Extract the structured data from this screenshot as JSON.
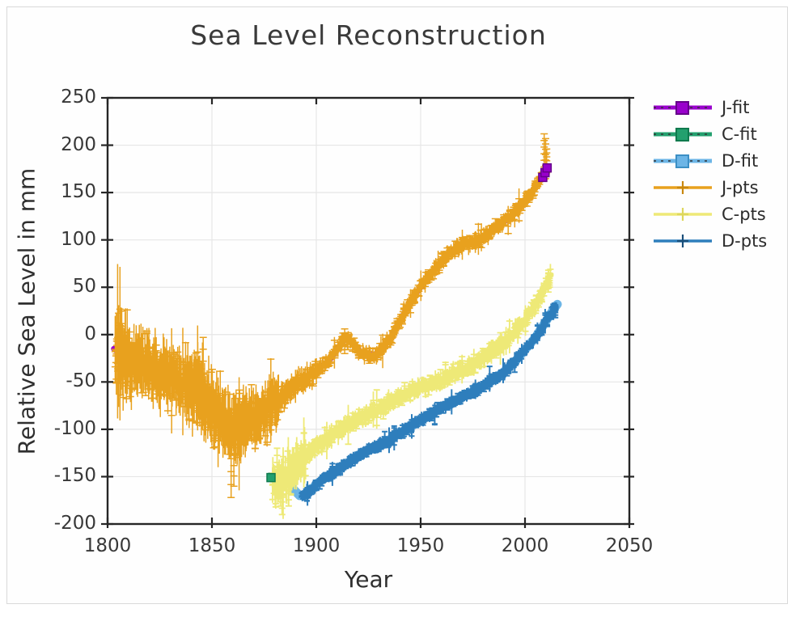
{
  "chart_data": {
    "type": "line+scatter",
    "title": "Sea Level Reconstruction",
    "xlabel": "Year",
    "ylabel": "Relative Sea Level in mm",
    "xlim": [
      1800,
      2050
    ],
    "ylim": [
      -200,
      250
    ],
    "xticks": [
      1800,
      1850,
      1900,
      1950,
      2000,
      2050
    ],
    "yticks": [
      250,
      200,
      150,
      100,
      50,
      0,
      -50,
      -100,
      -150,
      -200
    ],
    "grid": true,
    "grid_color": "#e6e6e6",
    "frame_color": "#262626",
    "legend_position": "right-outside",
    "series": [
      {
        "name": "J-fit",
        "kind": "fit",
        "color": "#9900cc",
        "edge": "#66008a",
        "width": 7,
        "marker": "square",
        "points": [
          [
            1803,
            -15
          ],
          [
            1807,
            -22
          ],
          [
            1811,
            -28
          ],
          [
            1815,
            -30
          ],
          [
            1819,
            -33
          ],
          [
            1823,
            -37
          ],
          [
            1827,
            -42
          ],
          [
            1831,
            -45
          ],
          [
            1835,
            -48
          ],
          [
            1839,
            -52
          ],
          [
            1843,
            -57
          ],
          [
            1847,
            -68
          ],
          [
            1851,
            -78
          ],
          [
            1855,
            -90
          ],
          [
            1859,
            -96
          ],
          [
            1863,
            -98
          ],
          [
            1867,
            -94
          ],
          [
            1871,
            -90
          ],
          [
            1875,
            -84
          ],
          [
            1879,
            -72
          ],
          [
            1883,
            -68
          ],
          [
            1887,
            -60
          ],
          [
            1891,
            -52
          ],
          [
            1895,
            -45
          ],
          [
            1899,
            -40
          ],
          [
            1903,
            -33
          ],
          [
            1907,
            -25
          ],
          [
            1911,
            -12
          ],
          [
            1914,
            -4
          ],
          [
            1917,
            -8
          ],
          [
            1920,
            -16
          ],
          [
            1924,
            -22
          ],
          [
            1928,
            -21
          ],
          [
            1932,
            -14
          ],
          [
            1936,
            -2
          ],
          [
            1940,
            14
          ],
          [
            1944,
            30
          ],
          [
            1948,
            44
          ],
          [
            1952,
            56
          ],
          [
            1956,
            67
          ],
          [
            1960,
            78
          ],
          [
            1964,
            87
          ],
          [
            1968,
            93
          ],
          [
            1972,
            96
          ],
          [
            1976,
            98
          ],
          [
            1980,
            103
          ],
          [
            1984,
            110
          ],
          [
            1988,
            116
          ],
          [
            1992,
            123
          ],
          [
            1996,
            131
          ],
          [
            2000,
            141
          ],
          [
            2004,
            153
          ],
          [
            2008,
            167
          ],
          [
            2011,
            176
          ]
        ],
        "overlay_squares": [
          [
            2008.5,
            166
          ],
          [
            2009.6,
            171
          ],
          [
            2010.6,
            176
          ]
        ]
      },
      {
        "name": "C-fit",
        "kind": "fit",
        "color": "#23a06e",
        "edge": "#0f7a4e",
        "width": 5.5,
        "marker": "square",
        "dash": "9 13",
        "points": [
          [
            1877.5,
            -148
          ],
          [
            1881,
            -156
          ],
          [
            1884,
            -154
          ],
          [
            1887,
            -148
          ],
          [
            1890,
            -140
          ],
          [
            1895,
            -128
          ],
          [
            1900,
            -118
          ],
          [
            1905,
            -110
          ],
          [
            1910,
            -103
          ],
          [
            1915,
            -95
          ],
          [
            1920,
            -89
          ],
          [
            1925,
            -84
          ],
          [
            1930,
            -78
          ],
          [
            1935,
            -72
          ],
          [
            1940,
            -66
          ],
          [
            1945,
            -61
          ],
          [
            1950,
            -56
          ],
          [
            1955,
            -51
          ],
          [
            1960,
            -47
          ],
          [
            1965,
            -42
          ],
          [
            1970,
            -37
          ],
          [
            1975,
            -31
          ],
          [
            1980,
            -24
          ],
          [
            1985,
            -16
          ],
          [
            1990,
            -8
          ],
          [
            1995,
            2
          ],
          [
            2000,
            15
          ],
          [
            2005,
            32
          ],
          [
            2010,
            53
          ],
          [
            2012,
            62
          ]
        ],
        "overlay_squares": [
          [
            1878.3,
            -151
          ]
        ]
      },
      {
        "name": "D-fit",
        "kind": "fit",
        "color": "#6cb5e6",
        "edge": "#3c8fc4",
        "width": 11,
        "marker": "square",
        "points": [
          [
            1888.5,
            -162
          ],
          [
            1892,
            -170
          ],
          [
            1896,
            -168
          ],
          [
            1900,
            -158
          ],
          [
            1905,
            -150
          ],
          [
            1910,
            -143
          ],
          [
            1915,
            -136
          ],
          [
            1920,
            -128
          ],
          [
            1925,
            -122
          ],
          [
            1930,
            -117
          ],
          [
            1935,
            -111
          ],
          [
            1940,
            -104
          ],
          [
            1945,
            -98
          ],
          [
            1950,
            -90
          ],
          [
            1955,
            -84
          ],
          [
            1960,
            -77
          ],
          [
            1965,
            -71
          ],
          [
            1970,
            -66
          ],
          [
            1975,
            -60
          ],
          [
            1980,
            -54
          ],
          [
            1985,
            -47
          ],
          [
            1990,
            -39
          ],
          [
            1995,
            -29
          ],
          [
            2000,
            -16
          ],
          [
            2005,
            -3
          ],
          [
            2010,
            14
          ],
          [
            2014,
            28
          ],
          [
            2015.5,
            32
          ]
        ]
      },
      {
        "name": "J-pts",
        "kind": "pts",
        "color": "#e8a11e",
        "marker": "plus",
        "marker_color": "#c9880f",
        "width": 1.5,
        "cap": 4.5,
        "seed": 7,
        "base": "J-fit",
        "eras": [
          {
            "from": 1803.8,
            "to": 1812,
            "step": 0.22,
            "jitter": 20,
            "bar": 30
          },
          {
            "from": 1812,
            "to": 1838,
            "step": 0.26,
            "jitter": 17,
            "bar": 24
          },
          {
            "from": 1838,
            "to": 1852,
            "step": 0.24,
            "jitter": 18,
            "bar": 28
          },
          {
            "from": 1852,
            "to": 1868,
            "step": 0.26,
            "jitter": 14,
            "bar": 26
          },
          {
            "from": 1868,
            "to": 1882,
            "step": 0.26,
            "jitter": 13,
            "bar": 22
          },
          {
            "from": 1882,
            "to": 1900,
            "step": 0.3,
            "jitter": 6,
            "bar": 10
          },
          {
            "from": 1900,
            "to": 2007,
            "step": 0.3,
            "jitter": 4.5,
            "bar": 6
          },
          {
            "from": 2007,
            "to": 2010.8,
            "step": 0.25,
            "jitter": 3.5,
            "bar": 5
          }
        ],
        "spikes": [
          [
            1843.2,
            -70,
            -8
          ],
          [
            1845.8,
            -78,
            -3
          ],
          [
            1859.2,
            -90,
            -172
          ],
          [
            1860.5,
            -95,
            -160
          ],
          [
            1913.6,
            -20,
            6
          ],
          [
            1915.2,
            -16,
            2
          ],
          [
            2009.2,
            170,
            212
          ],
          [
            2009.9,
            173,
            207
          ],
          [
            2010.4,
            171,
            196
          ]
        ]
      },
      {
        "name": "C-pts",
        "kind": "pts",
        "color": "#eee977",
        "marker": "plus",
        "marker_color": "#ded75e",
        "width": 1.8,
        "cap": 4,
        "seed": 13,
        "base": "C-fit",
        "eras": [
          {
            "from": 1879,
            "to": 1895,
            "step": 0.24,
            "jitter": 13,
            "bar": 15
          },
          {
            "from": 1895,
            "to": 2009,
            "step": 0.28,
            "jitter": 5,
            "bar": 7
          },
          {
            "from": 2009,
            "to": 2012.3,
            "step": 0.25,
            "jitter": 4,
            "bar": 6
          }
        ],
        "spikes": [
          [
            1881.2,
            -120,
            -165
          ],
          [
            1883.6,
            -150,
            -190
          ],
          [
            1886.8,
            -142,
            -181
          ],
          [
            2011.2,
            45,
            68
          ],
          [
            2011.8,
            50,
            64
          ]
        ]
      },
      {
        "name": "D-pts",
        "kind": "pts",
        "color": "#2e7ebc",
        "marker": "plus",
        "marker_color": "#1b4f79",
        "width": 2,
        "cap": 3.5,
        "seed": 21,
        "base": "D-fit",
        "eras": [
          {
            "from": 1893,
            "to": 2015,
            "step": 0.2,
            "jitter": 3.2,
            "bar": 4.5
          }
        ],
        "spikes": [
          [
            2014.6,
            18,
            34
          ]
        ]
      }
    ]
  }
}
